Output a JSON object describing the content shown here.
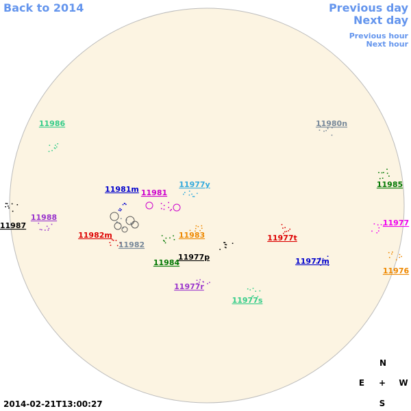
{
  "nav": {
    "back": "Back to 2014",
    "previous_day": "Previous day",
    "next_day": "Next day",
    "previous_hour": "Previous hour",
    "next_hour": "Next hour"
  },
  "regions": [
    {
      "label": "11986",
      "color": "#33cc88"
    },
    {
      "label": "11980n",
      "color": "#778899"
    },
    {
      "label": "11981m",
      "color": "#0000cc"
    },
    {
      "label": "11977y",
      "color": "#33aadd"
    },
    {
      "label": "11981",
      "color": "#cc00cc"
    },
    {
      "label": "11985",
      "color": "#007700"
    },
    {
      "label": "11988",
      "color": "#9933cc"
    },
    {
      "label": "11987",
      "color": "#000000"
    },
    {
      "label": "11977",
      "color": "#ee00ee"
    },
    {
      "label": "11982m",
      "color": "#dd0000"
    },
    {
      "label": "11983",
      "color": "#ee8800"
    },
    {
      "label": "11977t",
      "color": "#dd0000"
    },
    {
      "label": "11982",
      "color": "#778899"
    },
    {
      "label": "11984",
      "color": "#007700"
    },
    {
      "label": "11977p",
      "color": "#000000"
    },
    {
      "label": "11977m",
      "color": "#0000cc"
    },
    {
      "label": "11976",
      "color": "#ee8800"
    },
    {
      "label": "11977r",
      "color": "#9933cc"
    },
    {
      "label": "11977s",
      "color": "#33cc88"
    }
  ],
  "compass": {
    "north": "N",
    "east": "E",
    "center": "+",
    "west": "W",
    "south": "S"
  },
  "timestamp": "2014-02-21T13:00:27"
}
